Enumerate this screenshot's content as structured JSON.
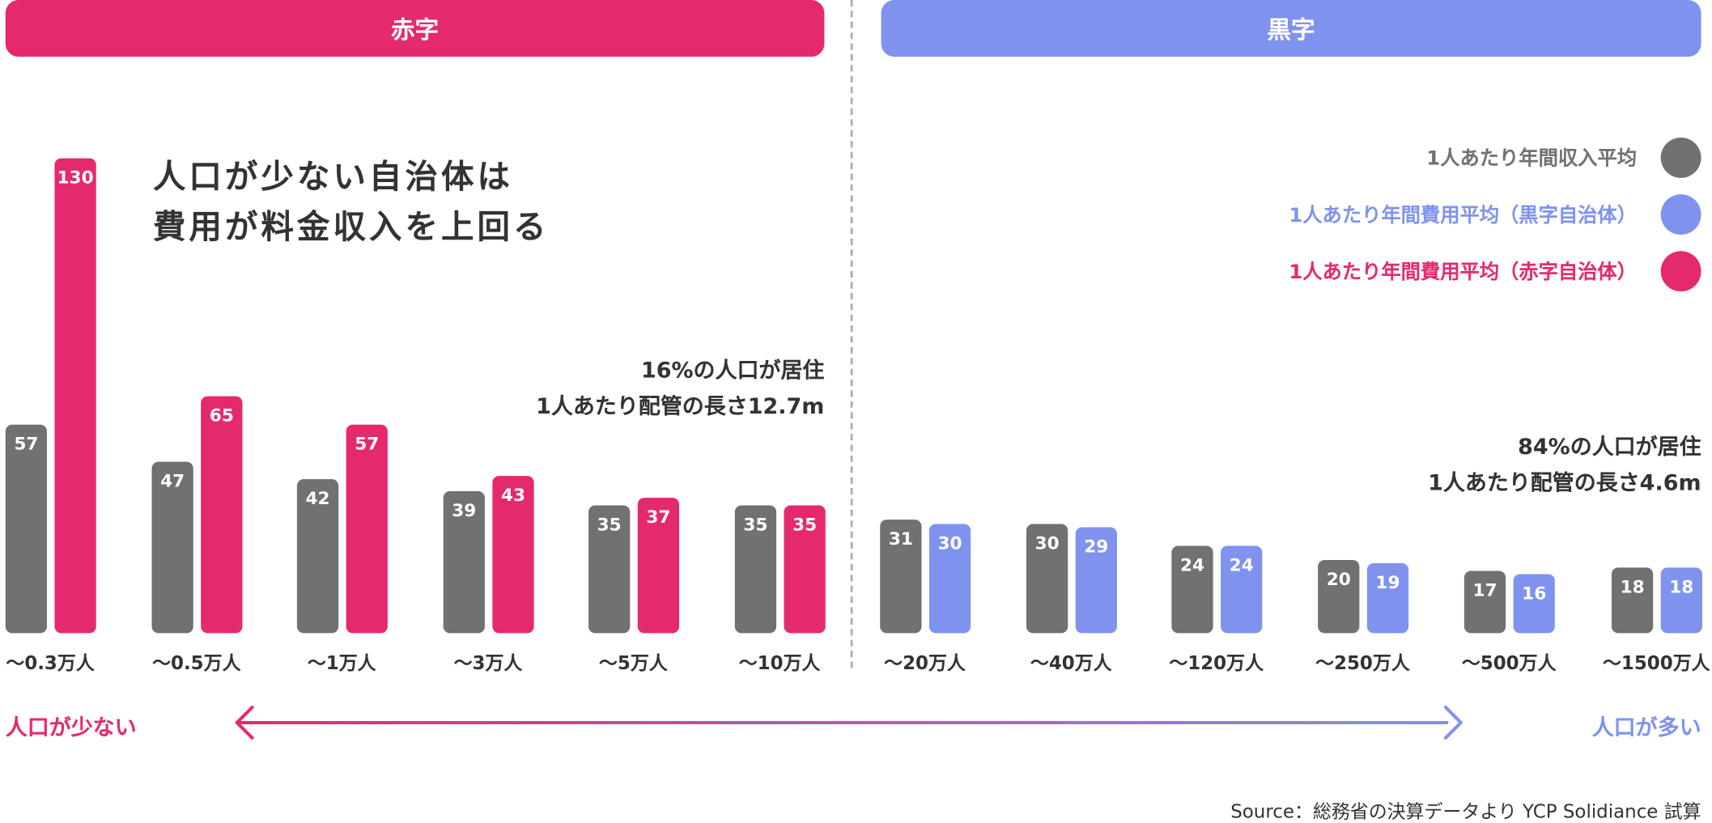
{
  "headers": {
    "deficit": "赤字",
    "surplus": "黒字"
  },
  "title_lines": [
    "人口が少ない自治体は",
    "費用が料金収入を上回る"
  ],
  "notes": {
    "left": [
      "16%の人口が居住",
      "1人あたり配管の長さ12.7m"
    ],
    "right": [
      "84%の人口が居住",
      "1人あたり配管の長さ4.6m"
    ]
  },
  "axis_ends": {
    "left": "人口が少ない",
    "right": "人口が多い"
  },
  "source": "Source：総務省の決算データより YCP Solidiance 試算",
  "colors": {
    "income": "#717171",
    "cost_surplus": "#7F93EE",
    "cost_deficit": "#E5296F",
    "text": "#333333"
  },
  "chart_data": {
    "type": "bar",
    "categories": [
      "〜0.3万人",
      "〜0.5万人",
      "〜1万人",
      "〜3万人",
      "〜5万人",
      "〜10万人",
      "〜20万人",
      "〜40万人",
      "〜120万人",
      "〜250万人",
      "〜500万人",
      "〜1500万人"
    ],
    "series": [
      {
        "name": "1人あたり年間収入平均",
        "values": [
          57,
          47,
          42,
          39,
          35,
          35,
          31,
          30,
          24,
          20,
          17,
          18
        ]
      },
      {
        "name": "1人あたり年間費用平均（黒字自治体）",
        "values": [
          null,
          null,
          null,
          null,
          null,
          null,
          30,
          29,
          24,
          19,
          16,
          18
        ]
      },
      {
        "name": "1人あたり年間費用平均（赤字自治体）",
        "values": [
          130,
          65,
          57,
          43,
          37,
          35,
          null,
          null,
          null,
          null,
          null,
          null
        ]
      }
    ],
    "legend": "top-right",
    "grid": false,
    "ylim": [
      0,
      130
    ]
  }
}
